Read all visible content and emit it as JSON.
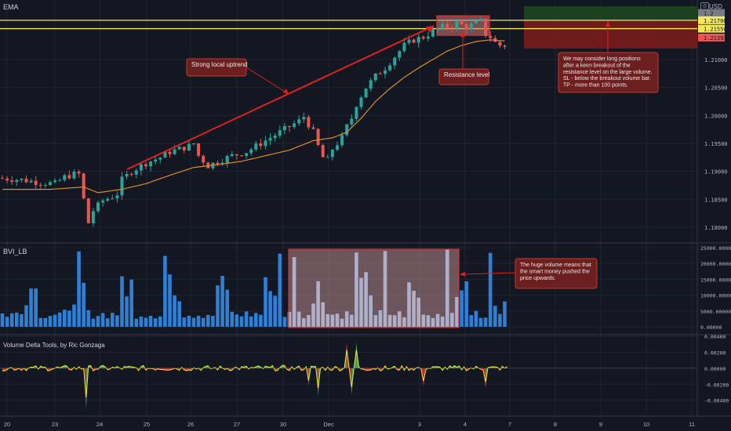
{
  "pane_labels": {
    "price": "EMA",
    "bvi": "BVI_LB",
    "vdt": "Volume Delta Tools, by Ric Gonzaga"
  },
  "currency_label": "USD",
  "icons": {
    "settings": "settings-icon"
  },
  "annotations": {
    "uptrend": "Strong local uptrend",
    "resistance": "Resistance level",
    "trade_idea": [
      "We may consider long positions",
      "after a keen breakout of the",
      "resistance level on the large volume.",
      "SL - below the breakout volume bar.",
      "TP - more than 100 points."
    ],
    "volume_note": [
      "The huge volume means that",
      "the smart money pushed the",
      "price upwards."
    ]
  },
  "colors": {
    "background": "#131722",
    "grid": "#1f2433",
    "candle_up": "#26a69a",
    "candle_down": "#ef5350",
    "ema": "#e08a2c",
    "resistance": "#f3e85a",
    "annotation_fill": "#6b1f1f",
    "annotation_border": "#c0392b",
    "volume_bar": "#2f7fd4",
    "delta_up": "#4caf50",
    "delta_down": "#d32f2f",
    "delta_line": "#e6e63a"
  },
  "chart_data": {
    "type": "candlestick",
    "x_tick_labels": [
      "20",
      "23",
      "24",
      "25",
      "26",
      "27",
      "30",
      "Dec",
      "3",
      "4",
      "7",
      "8",
      "9",
      "10",
      "11"
    ],
    "price_axis": {
      "ticks": [
        "1.21000",
        "1.20500",
        "1.20000",
        "1.19500",
        "1.19000",
        "1.18500",
        "1.18000"
      ],
      "ylim": [
        1.1775,
        1.2195
      ]
    },
    "price_labels": [
      {
        "value": 1.2183,
        "text": "1.2",
        "color": "#787b86"
      },
      {
        "value": 1.217,
        "text": "1.21700",
        "color": "#f3e85a"
      },
      {
        "value": 1.2155,
        "text": "1.21550",
        "color": "#f3e85a"
      },
      {
        "value": 1.21391,
        "text": "1.21391",
        "color": "#ef5350"
      }
    ],
    "resistance_levels": [
      1.217,
      1.2155
    ],
    "last_price": 1.21391,
    "price_path": [
      [
        0,
        1.1888
      ],
      [
        5,
        1.1885
      ],
      [
        9,
        1.188
      ],
      [
        12,
        1.1878
      ],
      [
        14,
        1.189
      ],
      [
        16,
        1.1895
      ],
      [
        17,
        1.1895
      ],
      [
        18,
        1.185
      ],
      [
        19,
        1.1808
      ],
      [
        20,
        1.183
      ],
      [
        22,
        1.1848
      ],
      [
        24,
        1.1855
      ],
      [
        25,
        1.186
      ],
      [
        26,
        1.1885
      ],
      [
        28,
        1.19
      ],
      [
        31,
        1.1915
      ],
      [
        34,
        1.1925
      ],
      [
        36,
        1.1935
      ],
      [
        40,
        1.1945
      ],
      [
        41,
        1.195
      ],
      [
        42,
        1.1928
      ],
      [
        44,
        1.191
      ],
      [
        46,
        1.1918
      ],
      [
        49,
        1.1928
      ],
      [
        52,
        1.1935
      ],
      [
        55,
        1.195
      ],
      [
        58,
        1.1965
      ],
      [
        61,
        1.198
      ],
      [
        63,
        1.199
      ],
      [
        64,
        1.1998
      ],
      [
        66,
        1.197
      ],
      [
        67,
        1.1945
      ],
      [
        68,
        1.1925
      ],
      [
        69,
        1.192
      ],
      [
        70,
        1.194
      ],
      [
        72,
        1.196
      ],
      [
        73,
        1.198
      ],
      [
        74,
        1.1995
      ],
      [
        75,
        1.202
      ],
      [
        77,
        1.205
      ],
      [
        79,
        1.207
      ],
      [
        81,
        1.2085
      ],
      [
        83,
        1.2105
      ],
      [
        85,
        1.2125
      ],
      [
        87,
        1.2135
      ],
      [
        89,
        1.214
      ],
      [
        91,
        1.215
      ],
      [
        93,
        1.2158
      ],
      [
        95,
        1.216
      ],
      [
        96,
        1.2165
      ],
      [
        98,
        1.2158
      ],
      [
        100,
        1.2165
      ],
      [
        101,
        1.2168
      ],
      [
        102,
        1.2145
      ],
      [
        103,
        1.214
      ],
      [
        104,
        1.213
      ],
      [
        105,
        1.2125
      ]
    ],
    "ema_path": [
      [
        0,
        1.1868
      ],
      [
        10,
        1.1868
      ],
      [
        17,
        1.1872
      ],
      [
        20,
        1.1862
      ],
      [
        25,
        1.1868
      ],
      [
        30,
        1.1878
      ],
      [
        35,
        1.1893
      ],
      [
        40,
        1.1907
      ],
      [
        45,
        1.1912
      ],
      [
        50,
        1.1918
      ],
      [
        55,
        1.1928
      ],
      [
        60,
        1.1938
      ],
      [
        65,
        1.1955
      ],
      [
        69,
        1.196
      ],
      [
        72,
        1.197
      ],
      [
        75,
        1.1995
      ],
      [
        78,
        1.2025
      ],
      [
        81,
        1.2048
      ],
      [
        84,
        1.2068
      ],
      [
        87,
        1.2085
      ],
      [
        90,
        1.21
      ],
      [
        93,
        1.2115
      ],
      [
        96,
        1.2125
      ],
      [
        99,
        1.2132
      ],
      [
        102,
        1.2135
      ],
      [
        105,
        1.2133
      ]
    ],
    "bvi_axis": {
      "ticks": [
        "25000.00000",
        "20000.00000",
        "15000.00000",
        "10000.00000",
        "5000.00000",
        "0.00000"
      ],
      "ylim": [
        0,
        25000
      ]
    },
    "delta_axis": {
      "ticks": [
        "0.00400",
        "0.00200",
        "0.00000",
        "-0.00200",
        "-0.00400"
      ],
      "ylim": [
        -0.0055,
        0.0042
      ]
    }
  }
}
